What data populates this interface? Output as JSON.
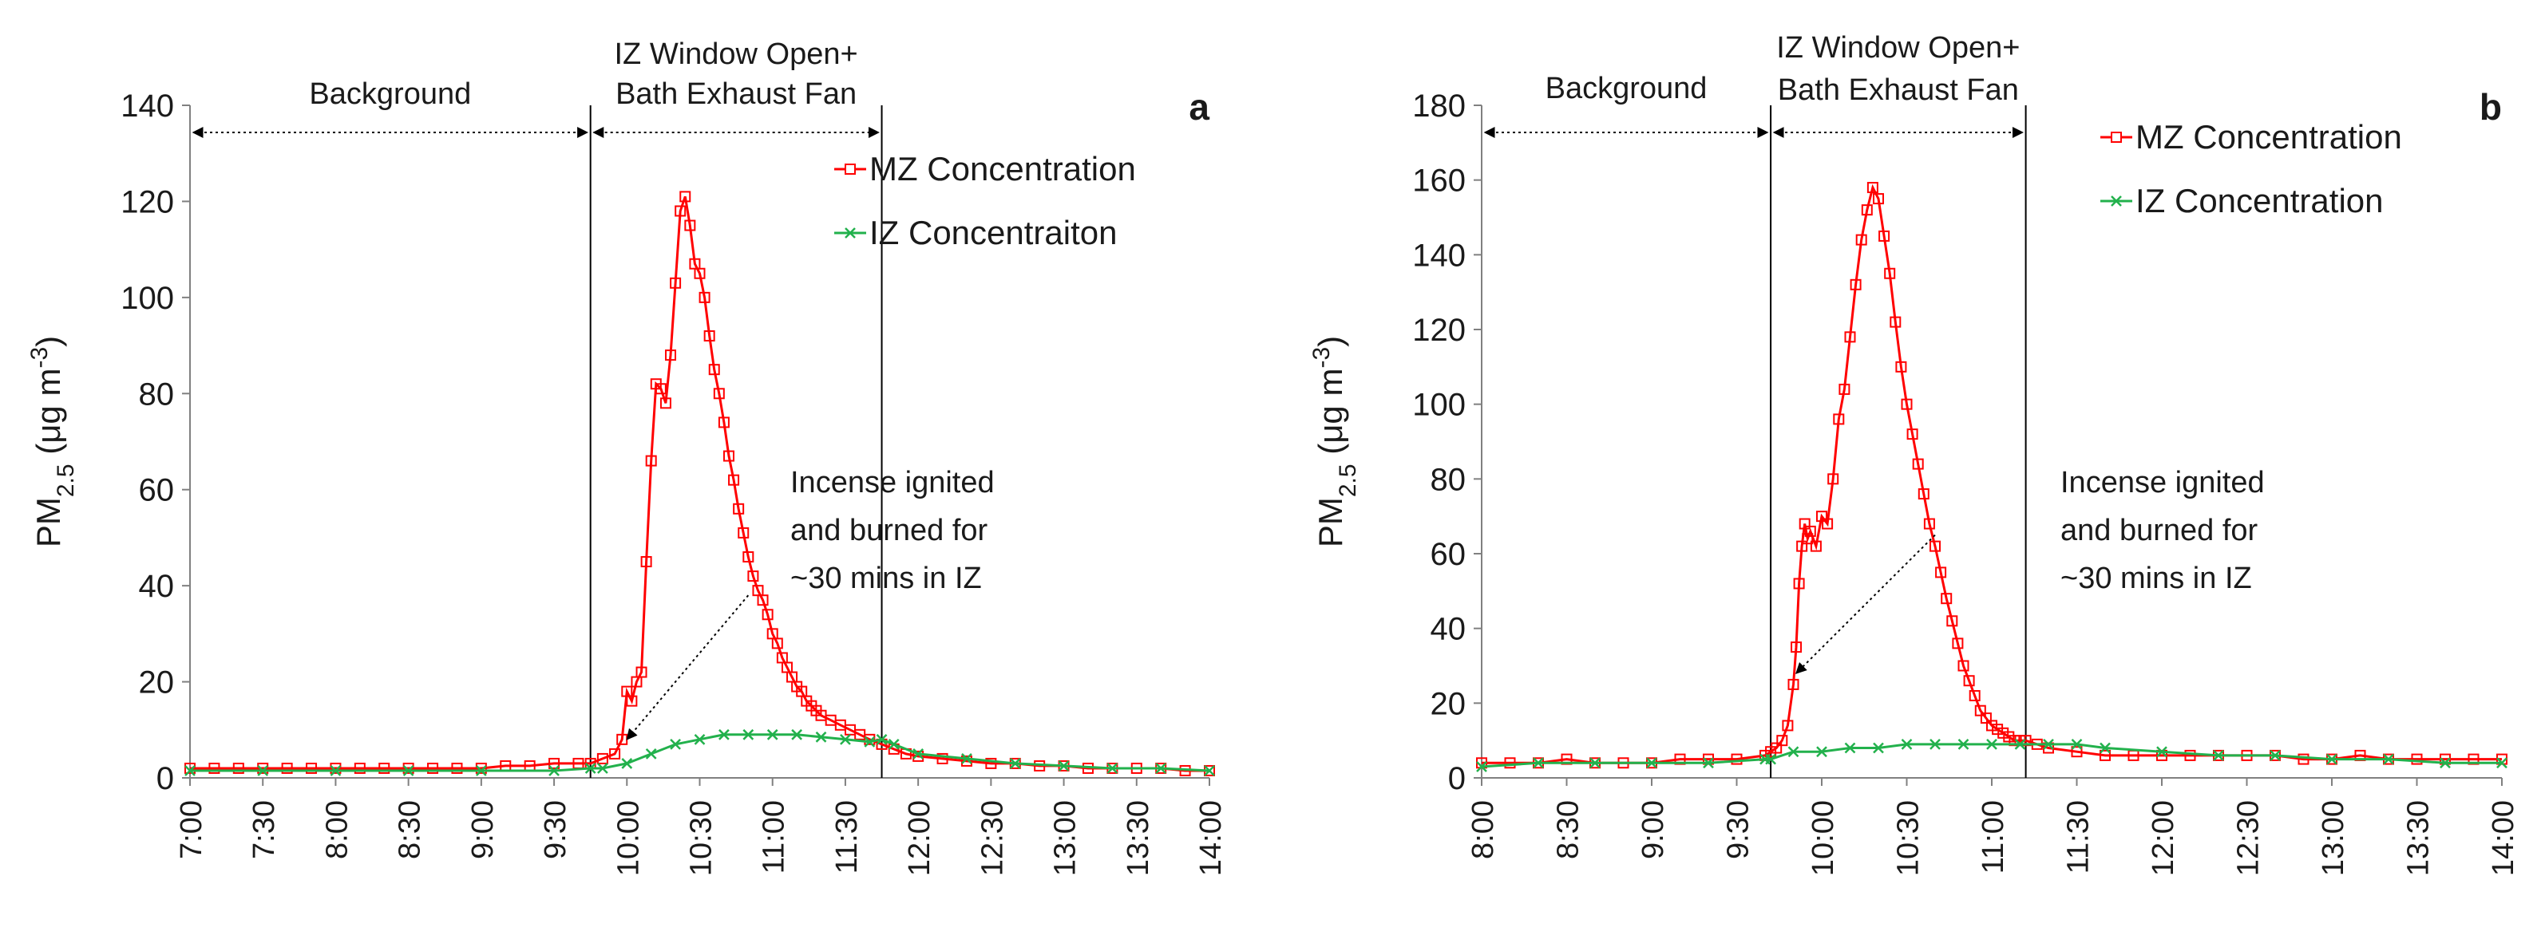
{
  "colors": {
    "mz": "#ff0000",
    "iz": "#22b14c",
    "axis": "#808080",
    "text": "#1a1a1a"
  },
  "chart_data": [
    {
      "type": "line",
      "panel_label": "a",
      "ylabel_main": "PM",
      "ylabel_sub": "2.5",
      "ylabel_unit": " (μg m",
      "ylabel_exp": "-3",
      "ylabel_close": ")",
      "ylim": [
        0,
        140
      ],
      "yticks": [
        0,
        20,
        40,
        60,
        80,
        100,
        120,
        140
      ],
      "xlim": [
        420,
        840
      ],
      "xticks": [
        "7:00",
        "7:30",
        "8:00",
        "8:30",
        "9:00",
        "9:30",
        "10:00",
        "10:30",
        "11:00",
        "11:30",
        "12:00",
        "12:30",
        "13:00",
        "13:30",
        "14:00"
      ],
      "xtick_minutes": [
        420,
        450,
        480,
        510,
        540,
        570,
        600,
        630,
        660,
        690,
        720,
        750,
        780,
        810,
        840
      ],
      "vlines": [
        585,
        705
      ],
      "regions": [
        {
          "name": "background",
          "lines": [
            "Background"
          ],
          "from": 420,
          "to": 585
        },
        {
          "name": "treatment",
          "lines": [
            "IZ Window Open+",
            "Bath Exhaust Fan"
          ],
          "from": 585,
          "to": 705
        }
      ],
      "annotation": {
        "lines": [
          "Incense ignited",
          "and burned for",
          "~30 mins in IZ"
        ],
        "arrow_to": [
          600,
          8
        ],
        "arrow_from": [
          650,
          38
        ]
      },
      "series": [
        {
          "name": "MZ Concentration",
          "color": "#ff0000",
          "marker": "square",
          "x": [
            420,
            430,
            440,
            450,
            460,
            470,
            480,
            490,
            500,
            510,
            520,
            530,
            540,
            550,
            560,
            570,
            580,
            585,
            590,
            595,
            598,
            600,
            602,
            604,
            606,
            608,
            610,
            612,
            614,
            616,
            618,
            620,
            622,
            624,
            626,
            628,
            630,
            632,
            634,
            636,
            638,
            640,
            642,
            644,
            646,
            648,
            650,
            652,
            654,
            656,
            658,
            660,
            662,
            664,
            666,
            668,
            670,
            672,
            674,
            676,
            678,
            680,
            684,
            688,
            692,
            696,
            700,
            705,
            710,
            715,
            720,
            730,
            740,
            750,
            760,
            770,
            780,
            790,
            800,
            810,
            820,
            830,
            840
          ],
          "values": [
            2,
            2,
            2,
            2,
            2,
            2,
            2,
            2,
            2,
            2,
            2,
            2,
            2,
            2.5,
            2.5,
            3,
            3,
            3,
            4,
            5,
            8,
            18,
            16,
            20,
            22,
            45,
            66,
            82,
            81,
            78,
            88,
            103,
            118,
            121,
            115,
            107,
            105,
            100,
            92,
            85,
            80,
            74,
            67,
            62,
            56,
            51,
            46,
            42,
            39,
            37,
            34,
            30,
            28,
            25,
            23,
            21,
            19,
            18,
            16,
            15,
            14,
            13,
            12,
            11,
            10,
            9,
            8,
            7,
            6,
            5,
            4.5,
            4,
            3.5,
            3,
            3,
            2.5,
            2.5,
            2,
            2,
            2,
            2,
            1.5,
            1.5
          ]
        },
        {
          "name": "IZ Concentraiton",
          "color": "#22b14c",
          "marker": "x",
          "x": [
            420,
            450,
            480,
            510,
            540,
            570,
            585,
            590,
            600,
            610,
            620,
            630,
            640,
            650,
            660,
            670,
            680,
            690,
            700,
            705,
            710,
            720,
            740,
            760,
            780,
            800,
            820,
            840
          ],
          "values": [
            1.5,
            1.5,
            1.5,
            1.5,
            1.5,
            1.5,
            2,
            2,
            3,
            5,
            7,
            8,
            9,
            9,
            9,
            9,
            8.5,
            8,
            7.5,
            8,
            7,
            5,
            4,
            3,
            2.5,
            2,
            2,
            1.5
          ]
        }
      ]
    },
    {
      "type": "line",
      "panel_label": "b",
      "ylabel_main": "PM",
      "ylabel_sub": "2.5",
      "ylabel_unit": " (μg m",
      "ylabel_exp": "-3",
      "ylabel_close": ")",
      "ylim": [
        0,
        180
      ],
      "yticks": [
        0,
        20,
        40,
        60,
        80,
        100,
        120,
        140,
        160,
        180
      ],
      "xlim": [
        480,
        840
      ],
      "xticks": [
        "8:00",
        "8:30",
        "9:00",
        "9:30",
        "10:00",
        "10:30",
        "11:00",
        "11:30",
        "12:00",
        "12:30",
        "13:00",
        "13:30",
        "14:00"
      ],
      "xtick_minutes": [
        480,
        510,
        540,
        570,
        600,
        630,
        660,
        690,
        720,
        750,
        780,
        810,
        840
      ],
      "vlines": [
        582,
        672
      ],
      "regions": [
        {
          "name": "background",
          "lines": [
            "Background"
          ],
          "from": 480,
          "to": 582
        },
        {
          "name": "treatment",
          "lines": [
            "IZ Window Open+",
            "Bath Exhaust Fan"
          ],
          "from": 582,
          "to": 672
        }
      ],
      "annotation": {
        "lines": [
          "Incense ignited",
          "and burned for",
          "~30 mins in IZ"
        ],
        "arrow_to": [
          591,
          28
        ],
        "arrow_from": [
          640,
          65
        ]
      },
      "series": [
        {
          "name": "MZ Concentration",
          "color": "#ff0000",
          "marker": "square",
          "x": [
            480,
            490,
            500,
            510,
            520,
            530,
            540,
            550,
            560,
            570,
            580,
            582,
            584,
            586,
            588,
            590,
            591,
            592,
            593,
            594,
            595,
            596,
            598,
            600,
            602,
            604,
            606,
            608,
            610,
            612,
            614,
            616,
            618,
            620,
            622,
            624,
            626,
            628,
            630,
            632,
            634,
            636,
            638,
            640,
            642,
            644,
            646,
            648,
            650,
            652,
            654,
            656,
            658,
            660,
            662,
            664,
            666,
            668,
            670,
            672,
            676,
            680,
            690,
            700,
            710,
            720,
            730,
            740,
            750,
            760,
            770,
            780,
            790,
            800,
            810,
            820,
            830,
            840
          ],
          "values": [
            4,
            4,
            4,
            5,
            4,
            4,
            4,
            5,
            5,
            5,
            6,
            7,
            8,
            10,
            14,
            25,
            35,
            52,
            62,
            68,
            64,
            66,
            62,
            70,
            68,
            80,
            96,
            104,
            118,
            132,
            144,
            152,
            158,
            155,
            145,
            135,
            122,
            110,
            100,
            92,
            84,
            76,
            68,
            62,
            55,
            48,
            42,
            36,
            30,
            26,
            22,
            18,
            16,
            14,
            13,
            12,
            11,
            10,
            10,
            10,
            9,
            8,
            7,
            6,
            6,
            6,
            6,
            6,
            6,
            6,
            5,
            5,
            6,
            5,
            5,
            5,
            5,
            5
          ]
        },
        {
          "name": "IZ Concentration",
          "color": "#22b14c",
          "marker": "x",
          "x": [
            480,
            500,
            520,
            540,
            560,
            580,
            582,
            590,
            600,
            610,
            620,
            630,
            640,
            650,
            660,
            670,
            680,
            690,
            700,
            720,
            740,
            760,
            780,
            800,
            820,
            840
          ],
          "values": [
            3,
            4,
            4,
            4,
            4,
            5,
            5,
            7,
            7,
            8,
            8,
            9,
            9,
            9,
            9,
            9,
            9,
            9,
            8,
            7,
            6,
            6,
            5,
            5,
            4,
            4
          ]
        }
      ]
    }
  ]
}
